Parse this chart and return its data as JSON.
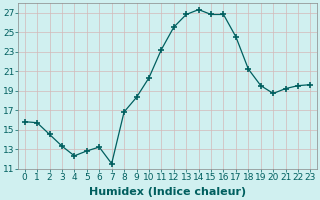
{
  "x": [
    0,
    1,
    2,
    3,
    4,
    5,
    6,
    7,
    8,
    9,
    10,
    11,
    12,
    13,
    14,
    15,
    16,
    17,
    18,
    19,
    20,
    21,
    22,
    23
  ],
  "y": [
    15.8,
    15.7,
    14.5,
    13.3,
    12.3,
    12.8,
    13.2,
    11.5,
    16.8,
    18.3,
    20.3,
    23.2,
    25.5,
    26.8,
    27.3,
    26.8,
    26.8,
    24.5,
    21.2,
    19.5,
    18.7,
    19.2,
    19.5,
    19.6
  ],
  "xlabel": "Humidex (Indice chaleur)",
  "ylim": [
    11,
    28
  ],
  "xlim": [
    -0.5,
    23.5
  ],
  "yticks": [
    11,
    13,
    15,
    17,
    19,
    21,
    23,
    25,
    27
  ],
  "xticks": [
    0,
    1,
    2,
    3,
    4,
    5,
    6,
    7,
    8,
    9,
    10,
    11,
    12,
    13,
    14,
    15,
    16,
    17,
    18,
    19,
    20,
    21,
    22,
    23
  ],
  "line_color": "#005f5f",
  "marker": "+",
  "marker_size": 4,
  "bg_color": "#d0f0f0",
  "grid_color": "#c0d8d8",
  "xlabel_fontsize": 8,
  "tick_fontsize": 6.5
}
